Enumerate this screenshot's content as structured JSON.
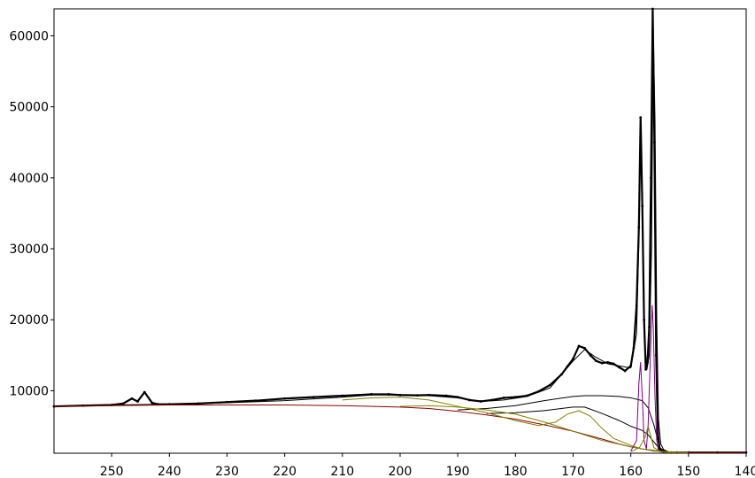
{
  "chart_data": {
    "type": "line",
    "x_reversed": true,
    "xlim": [
      260,
      140
    ],
    "ylim": [
      1200,
      63800
    ],
    "x_ticks": [
      250,
      240,
      230,
      220,
      210,
      200,
      190,
      180,
      170,
      160,
      150,
      140
    ],
    "y_ticks": [
      10000,
      20000,
      30000,
      40000,
      50000,
      60000
    ],
    "grid": false,
    "legend": "none",
    "series": [
      {
        "role": "measured",
        "color": "#000000",
        "style": "points",
        "x": [
          260,
          255,
          250,
          248,
          246.5,
          245.5,
          244.3,
          243,
          242,
          240,
          235,
          230,
          225,
          220,
          215,
          210,
          205,
          202,
          200,
          197,
          195,
          192,
          190,
          188,
          186,
          184,
          182,
          180,
          178,
          176,
          174,
          172,
          171,
          170,
          169,
          168,
          167,
          166,
          165,
          164,
          163,
          162,
          161,
          160,
          159.5,
          159,
          158.6,
          158.3,
          158,
          157.7,
          157.4,
          157.1,
          156.8,
          156.5,
          156.2,
          155.9,
          155.6,
          155.3,
          155,
          154.6,
          154.2,
          153.8,
          153,
          152,
          150,
          145,
          140
        ],
        "y": [
          7800,
          7900,
          8000,
          8200,
          8900,
          8500,
          9800,
          8300,
          8100,
          8100,
          8200,
          8400,
          8600,
          8900,
          9100,
          9300,
          9500,
          9500,
          9400,
          9350,
          9400,
          9300,
          9100,
          8700,
          8500,
          8700,
          9000,
          9100,
          9300,
          9900,
          10800,
          12300,
          13400,
          14500,
          16300,
          16000,
          15000,
          14200,
          13900,
          14000,
          13800,
          13300,
          12800,
          13500,
          16000,
          22000,
          33000,
          48500,
          36000,
          20000,
          13000,
          14000,
          19000,
          40000,
          64000,
          45000,
          15000,
          4000,
          1800,
          1500,
          1400,
          1300,
          1300,
          1300,
          1300,
          1300,
          1300
        ]
      },
      {
        "role": "envelope",
        "color": "#000000",
        "style": "line",
        "x": [
          260,
          250,
          240,
          230,
          220,
          210,
          205,
          200,
          195,
          190,
          186,
          182,
          178,
          174,
          170,
          168,
          166,
          164,
          162,
          160,
          159,
          158.6,
          158.3,
          158,
          157.6,
          157.2,
          156.8,
          156.4,
          156.1,
          155.8,
          155.5,
          155.2,
          154.8,
          154.3,
          153.5,
          152,
          150,
          145,
          140
        ],
        "y": [
          7800,
          8000,
          8100,
          8300,
          8600,
          9100,
          9400,
          9400,
          9300,
          9000,
          8500,
          8700,
          9200,
          10400,
          14200,
          15800,
          14700,
          13800,
          13500,
          13200,
          18000,
          31000,
          47500,
          35000,
          17000,
          13000,
          15000,
          30000,
          61000,
          48000,
          20000,
          6000,
          2500,
          1700,
          1400,
          1300,
          1300,
          1300,
          1300
        ]
      },
      {
        "role": "background",
        "color": "#8b0000",
        "style": "line",
        "x": [
          260,
          240,
          230,
          220,
          210,
          200,
          195,
          190,
          185,
          180,
          175,
          170,
          165,
          162,
          160,
          158,
          157,
          156,
          155,
          154,
          150,
          145,
          140
        ],
        "y": [
          7800,
          8000,
          8000,
          8000,
          7900,
          7700,
          7500,
          7100,
          6600,
          6000,
          5200,
          4300,
          3200,
          2500,
          2100,
          1800,
          1700,
          1600,
          1500,
          1400,
          1300,
          1300,
          1300
        ]
      },
      {
        "role": "component",
        "color": "#000000",
        "style": "line",
        "x": [
          190,
          185,
          180,
          175,
          170,
          168,
          165,
          162,
          160,
          158,
          157,
          156,
          155,
          154,
          150
        ],
        "y": [
          7300,
          7500,
          7900,
          8600,
          9200,
          9300,
          9300,
          9200,
          9000,
          8600,
          7600,
          5200,
          2000,
          1400,
          1300
        ]
      },
      {
        "role": "component",
        "color": "#000000",
        "style": "line",
        "x": [
          185,
          180,
          175,
          170,
          168,
          165,
          162,
          160,
          158,
          157,
          156,
          155,
          154,
          150
        ],
        "y": [
          6800,
          6900,
          7200,
          7700,
          7700,
          6800,
          5800,
          5000,
          4400,
          3800,
          2800,
          1800,
          1400,
          1300
        ]
      },
      {
        "role": "component",
        "color": "#808000",
        "style": "line",
        "x": [
          210,
          205,
          200,
          195,
          190,
          185,
          180,
          176,
          173,
          171,
          169,
          167,
          165,
          163,
          160,
          158,
          156,
          154,
          150
        ],
        "y": [
          8700,
          9000,
          9100,
          8700,
          7800,
          6900,
          5800,
          5100,
          5600,
          6700,
          7200,
          6400,
          4700,
          3300,
          2300,
          1800,
          1500,
          1400,
          1300
        ]
      },
      {
        "role": "component",
        "color": "#808000",
        "style": "line",
        "x": [
          200,
          195,
          190,
          185,
          180,
          175,
          170,
          165,
          160,
          158,
          156,
          154,
          150
        ],
        "y": [
          7800,
          7900,
          7700,
          7300,
          6700,
          5600,
          4300,
          3000,
          2100,
          1800,
          1600,
          1400,
          1300
        ]
      },
      {
        "role": "component",
        "color": "#800080",
        "style": "line",
        "x": [
          160,
          159,
          158.6,
          158.3,
          158,
          157.7,
          157.3,
          157,
          156.6,
          156.3,
          156.1,
          155.8,
          155.5,
          155.2,
          154.8,
          154,
          152,
          150
        ],
        "y": [
          1500,
          3000,
          11000,
          14000,
          9000,
          3000,
          1800,
          5000,
          15000,
          22000,
          19000,
          9000,
          3000,
          1600,
          1400,
          1300,
          1300,
          1300
        ]
      },
      {
        "role": "component",
        "color": "#808000",
        "style": "line",
        "x": [
          160,
          158.5,
          157.5,
          157,
          156.5,
          156,
          155,
          154,
          150
        ],
        "y": [
          1400,
          2000,
          3500,
          5000,
          3500,
          2000,
          1500,
          1300,
          1300
        ]
      }
    ]
  }
}
